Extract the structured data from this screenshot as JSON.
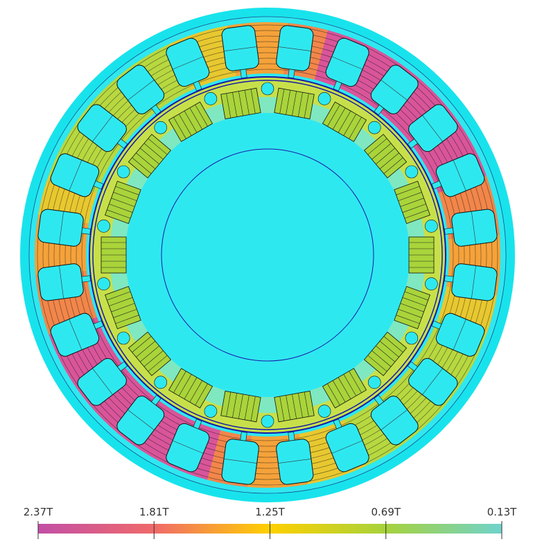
{
  "colorbar": {
    "range": [
      2.37,
      0.13
    ],
    "ticks": [
      {
        "value": 2.37,
        "label": "2.37T"
      },
      {
        "value": 1.81,
        "label": "1.81T"
      },
      {
        "value": 1.25,
        "label": "1.25T"
      },
      {
        "value": 0.69,
        "label": "0.69T"
      },
      {
        "value": 0.13,
        "label": "0.13T"
      }
    ],
    "colors": [
      "#c24fa6",
      "#f06a6a",
      "#ffd000",
      "#a6d23c",
      "#6fd3cc"
    ]
  }
}
